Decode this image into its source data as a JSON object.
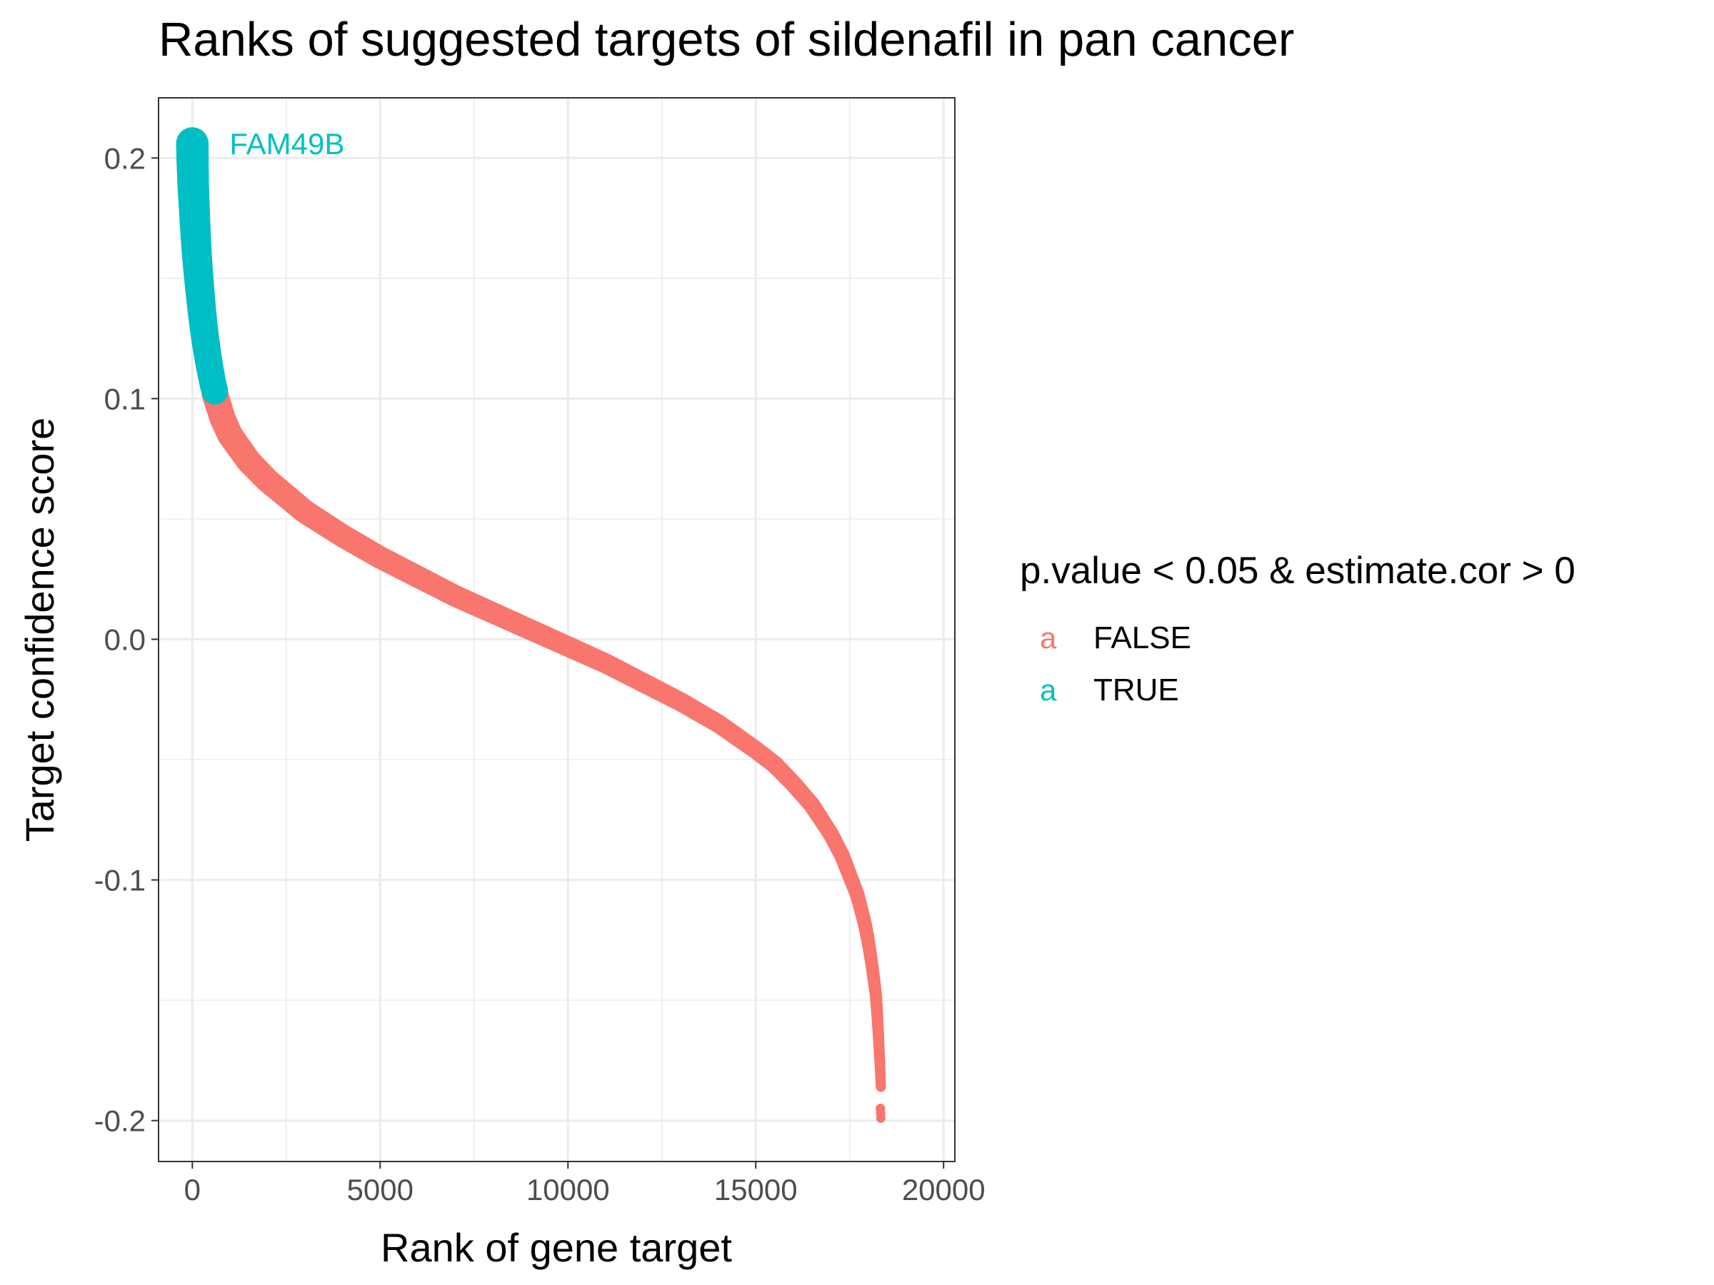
{
  "chart_data": {
    "type": "scatter",
    "title": "Ranks of suggested targets of sildenafil in pan cancer",
    "xlabel": "Rank of gene target",
    "ylabel": "Target confidence score",
    "xlim": [
      -900,
      20300
    ],
    "ylim": [
      -0.217,
      0.225
    ],
    "x_ticks": [
      0,
      5000,
      10000,
      15000,
      20000
    ],
    "x_tick_labels": [
      "0",
      "5000",
      "10000",
      "15000",
      "20000"
    ],
    "y_ticks": [
      0.2,
      0.1,
      0.0,
      -0.1,
      -0.2
    ],
    "y_tick_labels": [
      "0.2",
      "0.1",
      "0.0",
      "-0.1",
      "-0.2"
    ],
    "grid": true,
    "theme": "bw",
    "legend": {
      "title": "p.value < 0.05 & estimate.cor > 0",
      "position": "right",
      "key_glyph": "a",
      "entries": [
        {
          "label": "FALSE",
          "color": "#F8766D"
        },
        {
          "label": "TRUE",
          "color": "#00BFC4"
        }
      ]
    },
    "series": [
      {
        "name": "TRUE",
        "color": "#00BFC4",
        "x": [
          0,
          10,
          25,
          50,
          75,
          100,
          125,
          150,
          200,
          250,
          300,
          350,
          400,
          450,
          500,
          550,
          600
        ],
        "y": [
          0.206,
          0.196,
          0.188,
          0.18,
          0.172,
          0.165,
          0.159,
          0.154,
          0.145,
          0.137,
          0.13,
          0.124,
          0.119,
          0.114,
          0.11,
          0.106,
          0.103
        ]
      },
      {
        "name": "FALSE",
        "color": "#F8766D",
        "x": [
          600,
          800,
          1000,
          1500,
          2000,
          3000,
          4000,
          5000,
          6000,
          7000,
          8000,
          9000,
          10000,
          11000,
          12000,
          13000,
          14000,
          15000,
          15500,
          16000,
          16500,
          17000,
          17300,
          17500,
          17700,
          17900,
          18000,
          18100,
          18200,
          18250,
          18300,
          18330
        ],
        "y": [
          0.102,
          0.092,
          0.085,
          0.074,
          0.066,
          0.053,
          0.043,
          0.034,
          0.026,
          0.018,
          0.011,
          0.004,
          -0.003,
          -0.01,
          -0.018,
          -0.026,
          -0.035,
          -0.046,
          -0.052,
          -0.06,
          -0.069,
          -0.081,
          -0.09,
          -0.098,
          -0.106,
          -0.118,
          -0.126,
          -0.136,
          -0.148,
          -0.16,
          -0.175,
          -0.186
        ]
      },
      {
        "name": "FALSE",
        "color": "#F8766D",
        "x": [
          18320,
          18325,
          18330
        ],
        "y": [
          -0.195,
          -0.197,
          -0.199
        ]
      }
    ],
    "annotations": [
      {
        "text": "FAM49B",
        "x": 0,
        "y": 0.206,
        "color": "#00BFC4"
      }
    ]
  }
}
